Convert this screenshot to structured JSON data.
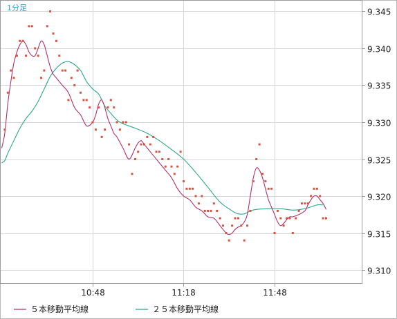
{
  "chart_data": {
    "type": "scatter",
    "period_label": "1分足",
    "x_ticks": [
      "10:48",
      "11:18",
      "11:48"
    ],
    "y_ticks": [
      "9.310",
      "9.315",
      "9.320",
      "9.325",
      "9.330",
      "9.335",
      "9.340",
      "9.345"
    ],
    "ylim": [
      9.3075,
      9.3465
    ],
    "x_range_minutes": [
      0,
      119
    ],
    "grid": true,
    "legend_position": "bottom-left",
    "colors": {
      "points": "#d9533f",
      "ma5": "#b0306b",
      "ma25": "#2aa886",
      "grid": "#d6d6d6",
      "frame": "#9a9a9a"
    },
    "legend": [
      {
        "label": "５本移動平均線",
        "color": "#b0306b"
      },
      {
        "label": "２５本移動平均線",
        "color": "#2aa886"
      }
    ],
    "prices": [
      [
        1,
        9.329
      ],
      [
        2,
        9.334
      ],
      [
        3,
        9.337
      ],
      [
        4,
        9.336
      ],
      [
        5,
        9.339
      ],
      [
        6,
        9.341
      ],
      [
        7,
        9.341
      ],
      [
        8,
        9.339
      ],
      [
        9,
        9.343
      ],
      [
        10,
        9.343
      ],
      [
        11,
        9.34
      ],
      [
        12,
        9.339
      ],
      [
        13,
        9.336
      ],
      [
        14,
        9.337
      ],
      [
        15,
        9.343
      ],
      [
        16,
        9.345
      ],
      [
        17,
        9.342
      ],
      [
        18,
        9.341
      ],
      [
        19,
        9.339
      ],
      [
        20,
        9.337
      ],
      [
        21,
        9.337
      ],
      [
        22,
        9.333
      ],
      [
        23,
        9.336
      ],
      [
        24,
        9.335
      ],
      [
        25,
        9.337
      ],
      [
        26,
        9.334
      ],
      [
        27,
        9.333
      ],
      [
        28,
        9.333
      ],
      [
        29,
        9.332
      ],
      [
        30,
        9.33
      ],
      [
        31,
        9.329
      ],
      [
        32,
        9.332
      ],
      [
        33,
        9.328
      ],
      [
        34,
        9.329
      ],
      [
        35,
        9.332
      ],
      [
        36,
        9.333
      ],
      [
        37,
        9.332
      ],
      [
        38,
        9.33
      ],
      [
        39,
        9.329
      ],
      [
        40,
        9.33
      ],
      [
        41,
        9.33
      ],
      [
        42,
        9.327
      ],
      [
        43,
        9.323
      ],
      [
        44,
        9.325
      ],
      [
        45,
        9.326
      ],
      [
        46,
        9.327
      ],
      [
        47,
        9.327
      ],
      [
        48,
        9.328
      ],
      [
        49,
        9.327
      ],
      [
        50,
        9.328
      ],
      [
        51,
        9.326
      ],
      [
        52,
        9.326
      ],
      [
        53,
        9.325
      ],
      [
        54,
        9.324
      ],
      [
        55,
        9.325
      ],
      [
        56,
        9.324
      ],
      [
        57,
        9.323
      ],
      [
        58,
        9.324
      ],
      [
        59,
        9.326
      ],
      [
        60,
        9.322
      ],
      [
        61,
        9.321
      ],
      [
        62,
        9.321
      ],
      [
        63,
        9.321
      ],
      [
        64,
        9.32
      ],
      [
        65,
        9.319
      ],
      [
        66,
        9.32
      ],
      [
        67,
        9.318
      ],
      [
        68,
        9.318
      ],
      [
        69,
        9.318
      ],
      [
        70,
        9.319
      ],
      [
        71,
        9.318
      ],
      [
        72,
        9.317
      ],
      [
        73,
        9.316
      ],
      [
        74,
        9.315
      ],
      [
        75,
        9.314
      ],
      [
        76,
        9.316
      ],
      [
        77,
        9.317
      ],
      [
        78,
        9.317
      ],
      [
        79,
        9.316
      ],
      [
        80,
        9.314
      ],
      [
        81,
        9.316
      ],
      [
        82,
        9.318
      ],
      [
        83,
        9.322
      ],
      [
        84,
        9.325
      ],
      [
        85,
        9.327
      ],
      [
        86,
        9.323
      ],
      [
        87,
        9.322
      ],
      [
        88,
        9.321
      ],
      [
        89,
        9.321
      ],
      [
        90,
        9.315
      ],
      [
        91,
        9.318
      ],
      [
        92,
        9.317
      ],
      [
        93,
        9.316
      ],
      [
        94,
        9.317
      ],
      [
        95,
        9.317
      ],
      [
        96,
        9.315
      ],
      [
        97,
        9.317
      ],
      [
        98,
        9.318
      ],
      [
        99,
        9.319
      ],
      [
        100,
        9.319
      ],
      [
        101,
        9.319
      ],
      [
        102,
        9.32
      ],
      [
        103,
        9.321
      ],
      [
        104,
        9.321
      ],
      [
        105,
        9.32
      ],
      [
        106,
        9.317
      ],
      [
        107,
        9.317
      ]
    ],
    "series": [
      {
        "name": "５本移動平均線",
        "x": [
          0,
          1,
          2,
          3,
          4,
          5,
          6,
          7,
          8,
          9,
          10,
          11,
          12,
          13,
          14,
          15,
          16,
          17,
          18,
          19,
          20,
          22,
          24,
          26,
          28,
          30,
          31,
          32,
          33,
          34,
          35,
          36,
          37,
          38,
          40,
          42,
          44,
          45,
          46,
          47,
          48,
          50,
          52,
          54,
          56,
          58,
          60,
          62,
          64,
          66,
          68,
          70,
          72,
          74,
          75,
          76,
          77,
          78,
          79,
          80,
          81,
          82,
          83,
          84,
          85,
          86,
          87,
          88,
          89,
          90,
          91,
          92,
          93,
          94,
          95,
          96,
          98,
          100,
          101,
          102,
          103,
          104,
          105,
          106,
          107
        ],
        "values": [
          9.3265,
          9.3285,
          9.3325,
          9.3355,
          9.338,
          9.3395,
          9.3405,
          9.341,
          9.3405,
          9.3395,
          9.339,
          9.339,
          9.34,
          9.341,
          9.3405,
          9.339,
          9.3375,
          9.3365,
          9.336,
          9.3355,
          9.335,
          9.334,
          9.332,
          9.331,
          9.3295,
          9.33,
          9.331,
          9.3325,
          9.333,
          9.332,
          9.3305,
          9.3295,
          9.3285,
          9.328,
          9.3265,
          9.325,
          9.3265,
          9.3272,
          9.3275,
          9.327,
          9.3265,
          9.3255,
          9.3245,
          9.3235,
          9.3225,
          9.321,
          9.32,
          9.3195,
          9.3185,
          9.318,
          9.3172,
          9.317,
          9.316,
          9.315,
          9.3148,
          9.315,
          9.3155,
          9.3158,
          9.316,
          9.3165,
          9.3175,
          9.32,
          9.3225,
          9.3238,
          9.3235,
          9.3225,
          9.321,
          9.3195,
          9.3185,
          9.3175,
          9.3165,
          9.316,
          9.3163,
          9.3168,
          9.3172,
          9.3172,
          9.3175,
          9.318,
          9.3188,
          9.3195,
          9.32,
          9.32,
          9.3195,
          9.319,
          9.3182
        ]
      },
      {
        "name": "２５本移動平均線",
        "x": [
          0,
          1,
          2,
          4,
          6,
          8,
          10,
          12,
          14,
          16,
          18,
          20,
          22,
          24,
          26,
          28,
          30,
          32,
          34,
          36,
          38,
          40,
          44,
          48,
          52,
          56,
          60,
          64,
          68,
          72,
          76,
          78,
          80,
          82,
          84,
          88,
          92,
          96,
          100,
          104,
          106
        ],
        "values": [
          9.3245,
          9.3248,
          9.3258,
          9.3275,
          9.3292,
          9.3305,
          9.3315,
          9.3328,
          9.3345,
          9.3362,
          9.3373,
          9.338,
          9.3382,
          9.3378,
          9.337,
          9.3355,
          9.3345,
          9.3338,
          9.3322,
          9.3312,
          9.3303,
          9.3298,
          9.3292,
          9.3285,
          9.3275,
          9.3263,
          9.325,
          9.3232,
          9.3212,
          9.3192,
          9.318,
          9.3176,
          9.3176,
          9.318,
          9.3182,
          9.3183,
          9.3183,
          9.3181,
          9.3183,
          9.3188,
          9.3188
        ]
      }
    ]
  }
}
